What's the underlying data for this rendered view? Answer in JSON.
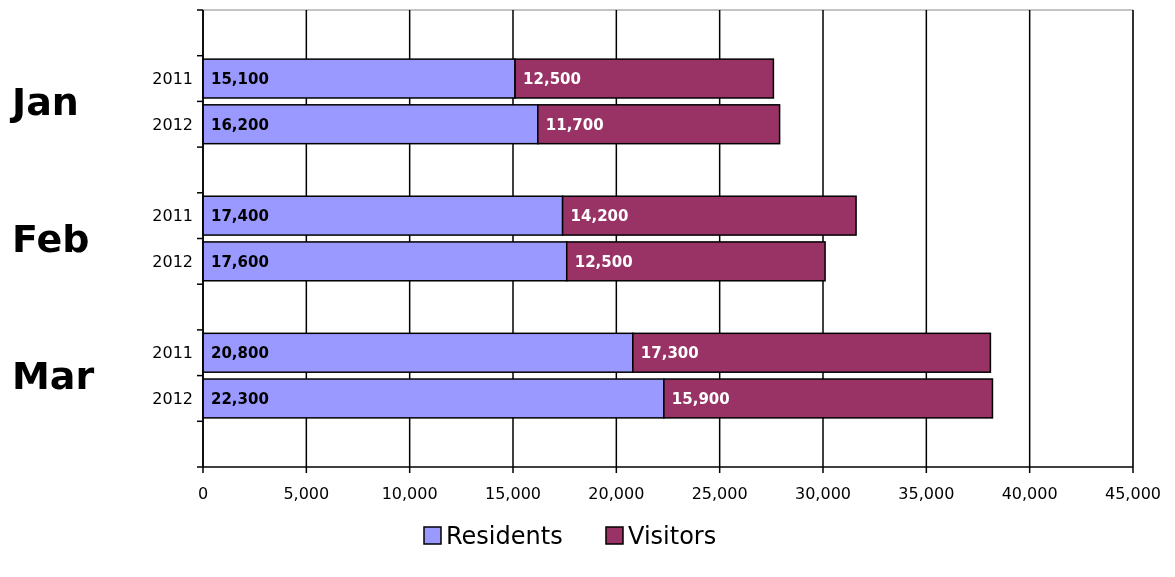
{
  "chart_data": {
    "type": "bar",
    "orientation": "horizontal",
    "stacked": true,
    "categories": [
      "2011",
      "2012",
      "2011",
      "2012",
      "2011",
      "2012"
    ],
    "annotations": [
      "Jan",
      "Feb",
      "Mar"
    ],
    "series": [
      {
        "name": "Residents",
        "color": "#9999ff",
        "values": [
          15100,
          16200,
          17400,
          17600,
          20800,
          22300
        ],
        "value_labels": [
          "15,100",
          "16,200",
          "17,400",
          "17,600",
          "20,800",
          "22,300"
        ]
      },
      {
        "name": "Visitors",
        "color": "#993366",
        "values": [
          12500,
          11700,
          14200,
          12500,
          17300,
          15900
        ],
        "value_labels": [
          "12,500",
          "11,700",
          "14,200",
          "12,500",
          "17,300",
          "15,900"
        ]
      }
    ],
    "xlim": [
      0,
      45000
    ],
    "xticks": [
      {
        "value": 0,
        "label": "0"
      },
      {
        "value": 5000,
        "label": "5,000"
      },
      {
        "value": 10000,
        "label": "10,000"
      },
      {
        "value": 15000,
        "label": "15,000"
      },
      {
        "value": 20000,
        "label": "20,000"
      },
      {
        "value": 25000,
        "label": "25,000"
      },
      {
        "value": 30000,
        "label": "30,000"
      },
      {
        "value": 35000,
        "label": "35,000"
      },
      {
        "value": 40000,
        "label": "40,000"
      },
      {
        "value": 45000,
        "label": "45,000"
      }
    ],
    "grid": "x",
    "legend": "bottom"
  }
}
